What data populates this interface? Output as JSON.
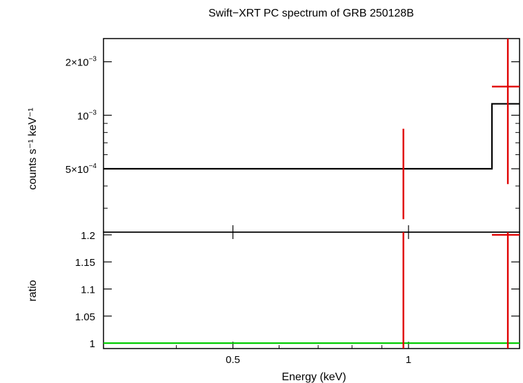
{
  "chart_data": [
    {
      "type": "line",
      "title": "Swift−XRT PC spectrum of GRB 250128B",
      "ylabel": "counts s⁻¹ keV⁻¹",
      "xscale": "log",
      "yscale": "log",
      "xlim": [
        0.3,
        1.55
      ],
      "ylim": [
        0.00022,
        0.0027
      ],
      "yticks": [
        {
          "value": 0.0005,
          "mant": "5×10",
          "exp": "−4"
        },
        {
          "value": 0.001,
          "mant": "10",
          "exp": "−3"
        },
        {
          "value": 0.002,
          "mant": "2×10",
          "exp": "−3"
        }
      ],
      "series": [
        {
          "kind": "data",
          "color": "#e00000",
          "points": [
            {
              "x": 0.98,
              "y": 0.00026,
              "yerr_low": 0.00026,
              "yerr_high": 0.00084
            },
            {
              "x": 1.48,
              "y": 0.00145,
              "xerr_low": 1.39,
              "xerr_high": 1.55,
              "yerr_low": 0.00041,
              "yerr_high": 0.0027
            }
          ]
        },
        {
          "kind": "model",
          "color": "#000000",
          "step_x": [
            0.3,
            1.39,
            1.39,
            1.55
          ],
          "step_y": [
            0.0005,
            0.0005,
            0.00116,
            0.00116
          ]
        }
      ]
    },
    {
      "type": "line",
      "xlabel": "Energy (keV)",
      "ylabel": "ratio",
      "xscale": "log",
      "xlim": [
        0.3,
        1.55
      ],
      "ylim": [
        0.99,
        1.205
      ],
      "xticks": [
        {
          "value": 0.5,
          "label": "0.5"
        },
        {
          "value": 1,
          "label": "1"
        }
      ],
      "yticks": [
        {
          "value": 1,
          "label": "1"
        },
        {
          "value": 1.05,
          "label": "1.05"
        },
        {
          "value": 1.1,
          "label": "1.1"
        },
        {
          "value": 1.15,
          "label": "1.15"
        },
        {
          "value": 1.2,
          "label": "1.2"
        }
      ],
      "reference_line": {
        "y": 1,
        "color": "#00cc00"
      },
      "series": [
        {
          "kind": "data",
          "color": "#e00000",
          "points": [
            {
              "x": 0.98,
              "y": 0.99,
              "yerr_low": 0.99,
              "yerr_high": 1.205
            },
            {
              "x": 1.48,
              "y": 1.2,
              "xerr_low": 1.39,
              "xerr_high": 1.55,
              "yerr_low": 0.99,
              "yerr_high": 1.205
            }
          ]
        }
      ]
    }
  ]
}
